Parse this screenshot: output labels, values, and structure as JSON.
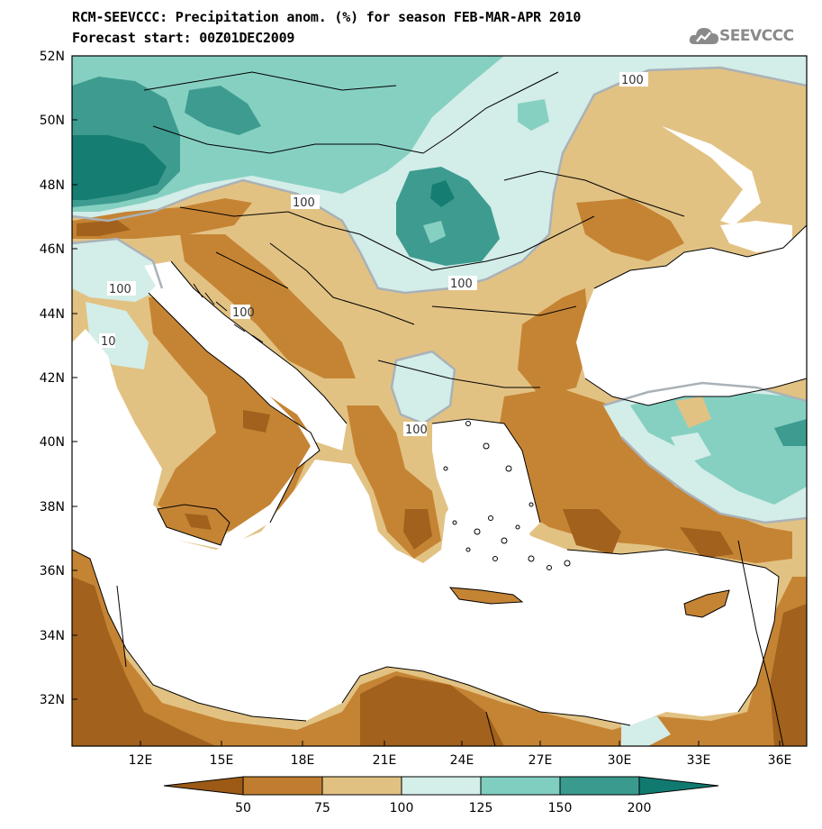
{
  "header": {
    "title": "RCM-SEEVCCC: Precipitation anom. (%) for season FEB-MAR-APR 2010",
    "subtitle": "Forecast start: 00Z01DEC2009"
  },
  "logo": {
    "text": "SEEVCCC",
    "color": "#8a8a8a"
  },
  "axes": {
    "lat_labels": [
      "52N",
      "50N",
      "48N",
      "46N",
      "44N",
      "42N",
      "40N",
      "38N",
      "36N",
      "34N",
      "32N"
    ],
    "lon_labels": [
      "12E",
      "15E",
      "18E",
      "21E",
      "24E",
      "27E",
      "30E",
      "33E",
      "36E"
    ]
  },
  "contour_labels": [
    "100",
    "100",
    "100",
    "100",
    "100",
    "100",
    "10"
  ],
  "legend": {
    "labels": [
      "50",
      "75",
      "100",
      "125",
      "150",
      "200"
    ],
    "colors": [
      "#9c5a16",
      "#c07d30",
      "#e1c182",
      "#d4eee9",
      "#7fcec0",
      "#3a9a8e",
      "#117a70"
    ]
  },
  "palette": {
    "dark_brown": "#a2611c",
    "brown": "#c58434",
    "tan": "#e2c283",
    "pale_teal": "#d3ede8",
    "teal": "#86d0c2",
    "dark_teal": "#3d9c8f",
    "darkest_teal": "#157d72",
    "water": "#ffffff",
    "contour_100": "#a9b2b8"
  }
}
